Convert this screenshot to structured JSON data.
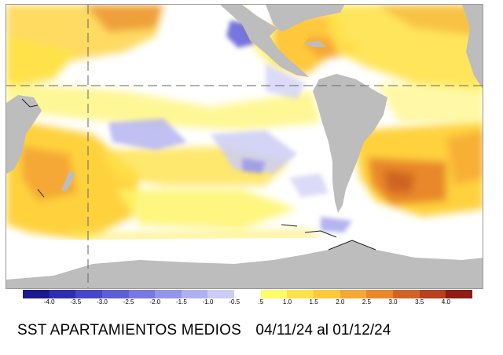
{
  "map": {
    "colors": {
      "land": "#bdbdbd",
      "ocean_neutral": "#ffffff",
      "ice_edge": "#222222",
      "grid_line": "#666666"
    }
  },
  "legend": {
    "ticks": [
      "-4.0",
      "-3.5",
      "-3.0",
      "-2.5",
      "-2.0",
      "-1.5",
      "-1.0",
      "-0.5",
      ".5",
      "1.0",
      "1.5",
      "2.0",
      "2.5",
      "3.0",
      "3.5",
      "4.0"
    ],
    "colors": [
      "#1a1a8c",
      "#2e2eb0",
      "#4646c8",
      "#5e5ed8",
      "#7878e0",
      "#9494e8",
      "#b0b0f0",
      "#ccccf6",
      "#ffffff",
      "#fffb6a",
      "#ffe24a",
      "#ffc83c",
      "#f5a834",
      "#e8882c",
      "#d06424",
      "#b8401e",
      "#8c1c14"
    ]
  },
  "caption": {
    "title": "SST APARTAMIENTOS MEDIOS",
    "dates": "04/11/24 al 01/12/24"
  }
}
